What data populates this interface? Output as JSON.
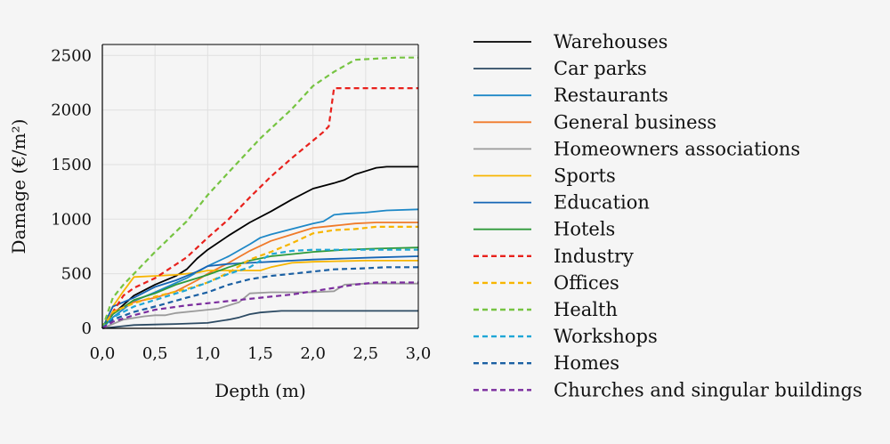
{
  "chart_data": {
    "type": "line",
    "xlabel": "Depth (m)",
    "ylabel": "Damage (€/m²)",
    "xlim": [
      0,
      3
    ],
    "ylim": [
      0,
      2600
    ],
    "x_ticks": [
      "0,0",
      "0,5",
      "1,0",
      "1,5",
      "2,0",
      "2,5",
      "3,0"
    ],
    "y_ticks": [
      "0",
      "500",
      "1000",
      "1500",
      "2000",
      "2500"
    ],
    "grid": true,
    "legend_position": "right",
    "series": [
      {
        "name": "Warehouses",
        "color": "#000000",
        "dash": false,
        "points": [
          [
            0,
            0
          ],
          [
            0.1,
            130
          ],
          [
            0.3,
            300
          ],
          [
            0.5,
            400
          ],
          [
            0.7,
            480
          ],
          [
            0.8,
            540
          ],
          [
            0.9,
            640
          ],
          [
            1.0,
            720
          ],
          [
            1.2,
            850
          ],
          [
            1.4,
            970
          ],
          [
            1.6,
            1070
          ],
          [
            1.8,
            1180
          ],
          [
            2.0,
            1280
          ],
          [
            2.2,
            1330
          ],
          [
            2.3,
            1360
          ],
          [
            2.4,
            1410
          ],
          [
            2.5,
            1440
          ],
          [
            2.6,
            1470
          ],
          [
            2.7,
            1480
          ],
          [
            3.0,
            1480
          ]
        ]
      },
      {
        "name": "Car parks",
        "color": "#2c4a63",
        "dash": false,
        "points": [
          [
            0,
            0
          ],
          [
            0.2,
            20
          ],
          [
            0.3,
            30
          ],
          [
            0.5,
            35
          ],
          [
            0.7,
            40
          ],
          [
            1.0,
            50
          ],
          [
            1.2,
            80
          ],
          [
            1.3,
            100
          ],
          [
            1.4,
            130
          ],
          [
            1.5,
            145
          ],
          [
            1.7,
            160
          ],
          [
            3.0,
            160
          ]
        ]
      },
      {
        "name": "Restaurants",
        "color": "#1e88c7",
        "dash": false,
        "points": [
          [
            0,
            0
          ],
          [
            0.1,
            100
          ],
          [
            0.3,
            250
          ],
          [
            0.5,
            330
          ],
          [
            0.8,
            460
          ],
          [
            1.0,
            570
          ],
          [
            1.2,
            660
          ],
          [
            1.4,
            770
          ],
          [
            1.5,
            830
          ],
          [
            1.6,
            860
          ],
          [
            1.8,
            910
          ],
          [
            2.0,
            960
          ],
          [
            2.1,
            980
          ],
          [
            2.2,
            1040
          ],
          [
            2.3,
            1050
          ],
          [
            2.5,
            1060
          ],
          [
            2.7,
            1080
          ],
          [
            3.0,
            1090
          ]
        ]
      },
      {
        "name": "General business",
        "color": "#f07a2a",
        "dash": false,
        "points": [
          [
            0,
            0
          ],
          [
            0.1,
            150
          ],
          [
            0.3,
            240
          ],
          [
            0.5,
            280
          ],
          [
            0.7,
            340
          ],
          [
            0.9,
            440
          ],
          [
            1.0,
            500
          ],
          [
            1.2,
            600
          ],
          [
            1.4,
            710
          ],
          [
            1.6,
            800
          ],
          [
            1.8,
            860
          ],
          [
            2.0,
            920
          ],
          [
            2.2,
            940
          ],
          [
            2.4,
            960
          ],
          [
            2.6,
            970
          ],
          [
            3.0,
            970
          ]
        ]
      },
      {
        "name": "Homeowners associations",
        "color": "#9b9b9b",
        "dash": false,
        "points": [
          [
            0,
            0
          ],
          [
            0.2,
            80
          ],
          [
            0.4,
            110
          ],
          [
            0.5,
            120
          ],
          [
            0.6,
            120
          ],
          [
            0.7,
            140
          ],
          [
            0.9,
            160
          ],
          [
            1.1,
            180
          ],
          [
            1.3,
            240
          ],
          [
            1.4,
            320
          ],
          [
            1.6,
            330
          ],
          [
            2.0,
            330
          ],
          [
            2.2,
            340
          ],
          [
            2.3,
            400
          ],
          [
            2.5,
            410
          ],
          [
            3.0,
            410
          ]
        ]
      },
      {
        "name": "Sports",
        "color": "#f7b500",
        "dash": false,
        "points": [
          [
            0,
            0
          ],
          [
            0.1,
            200
          ],
          [
            0.2,
            340
          ],
          [
            0.3,
            470
          ],
          [
            0.5,
            480
          ],
          [
            0.7,
            490
          ],
          [
            0.9,
            510
          ],
          [
            1.0,
            530
          ],
          [
            1.2,
            530
          ],
          [
            1.5,
            530
          ],
          [
            1.6,
            560
          ],
          [
            1.8,
            600
          ],
          [
            2.0,
            610
          ],
          [
            2.5,
            620
          ],
          [
            3.0,
            620
          ]
        ]
      },
      {
        "name": "Education",
        "color": "#1565b5",
        "dash": false,
        "points": [
          [
            0,
            0
          ],
          [
            0.1,
            200
          ],
          [
            0.3,
            280
          ],
          [
            0.5,
            380
          ],
          [
            0.7,
            440
          ],
          [
            0.9,
            520
          ],
          [
            1.0,
            570
          ],
          [
            1.2,
            590
          ],
          [
            1.4,
            600
          ],
          [
            1.6,
            610
          ],
          [
            1.8,
            620
          ],
          [
            2.0,
            630
          ],
          [
            2.3,
            640
          ],
          [
            2.6,
            650
          ],
          [
            3.0,
            660
          ]
        ]
      },
      {
        "name": "Hotels",
        "color": "#2e9a3a",
        "dash": false,
        "points": [
          [
            0,
            0
          ],
          [
            0.1,
            130
          ],
          [
            0.3,
            260
          ],
          [
            0.5,
            320
          ],
          [
            0.7,
            400
          ],
          [
            0.9,
            460
          ],
          [
            1.0,
            490
          ],
          [
            1.2,
            560
          ],
          [
            1.4,
            620
          ],
          [
            1.6,
            660
          ],
          [
            1.8,
            680
          ],
          [
            2.0,
            700
          ],
          [
            2.3,
            720
          ],
          [
            2.6,
            730
          ],
          [
            3.0,
            740
          ]
        ]
      },
      {
        "name": "Industry",
        "color": "#e8211c",
        "dash": true,
        "points": [
          [
            0,
            0
          ],
          [
            0.2,
            300
          ],
          [
            0.3,
            370
          ],
          [
            0.5,
            460
          ],
          [
            0.8,
            650
          ],
          [
            1.0,
            830
          ],
          [
            1.2,
            1000
          ],
          [
            1.4,
            1200
          ],
          [
            1.6,
            1390
          ],
          [
            1.8,
            1560
          ],
          [
            2.0,
            1720
          ],
          [
            2.1,
            1800
          ],
          [
            2.15,
            1850
          ],
          [
            2.2,
            2200
          ],
          [
            3.0,
            2200
          ]
        ]
      },
      {
        "name": "Offices",
        "color": "#f7b500",
        "dash": true,
        "points": [
          [
            0,
            0
          ],
          [
            0.1,
            150
          ],
          [
            0.3,
            230
          ],
          [
            0.5,
            290
          ],
          [
            0.8,
            360
          ],
          [
            1.0,
            420
          ],
          [
            1.2,
            510
          ],
          [
            1.4,
            630
          ],
          [
            1.6,
            700
          ],
          [
            1.8,
            780
          ],
          [
            2.0,
            870
          ],
          [
            2.2,
            900
          ],
          [
            2.4,
            910
          ],
          [
            2.6,
            930
          ],
          [
            3.0,
            930
          ]
        ]
      },
      {
        "name": "Health",
        "color": "#76c442",
        "dash": true,
        "points": [
          [
            0,
            0
          ],
          [
            0.1,
            280
          ],
          [
            0.2,
            400
          ],
          [
            0.5,
            700
          ],
          [
            0.8,
            980
          ],
          [
            1.0,
            1220
          ],
          [
            1.2,
            1430
          ],
          [
            1.5,
            1740
          ],
          [
            1.8,
            2010
          ],
          [
            2.0,
            2220
          ],
          [
            2.2,
            2350
          ],
          [
            2.4,
            2460
          ],
          [
            2.6,
            2470
          ],
          [
            2.8,
            2480
          ],
          [
            3.0,
            2480
          ]
        ]
      },
      {
        "name": "Workshops",
        "color": "#1fa6d6",
        "dash": true,
        "points": [
          [
            0,
            0
          ],
          [
            0.1,
            100
          ],
          [
            0.3,
            200
          ],
          [
            0.5,
            260
          ],
          [
            0.8,
            350
          ],
          [
            1.0,
            420
          ],
          [
            1.2,
            500
          ],
          [
            1.4,
            560
          ],
          [
            1.6,
            680
          ],
          [
            1.8,
            710
          ],
          [
            2.0,
            720
          ],
          [
            2.3,
            720
          ],
          [
            2.6,
            720
          ],
          [
            3.0,
            720
          ]
        ]
      },
      {
        "name": "Homes",
        "color": "#1b60a3",
        "dash": true,
        "points": [
          [
            0,
            0
          ],
          [
            0.1,
            80
          ],
          [
            0.3,
            150
          ],
          [
            0.5,
            200
          ],
          [
            0.8,
            280
          ],
          [
            1.0,
            330
          ],
          [
            1.2,
            400
          ],
          [
            1.4,
            450
          ],
          [
            1.6,
            480
          ],
          [
            1.8,
            500
          ],
          [
            2.0,
            520
          ],
          [
            2.2,
            540
          ],
          [
            2.5,
            550
          ],
          [
            2.7,
            560
          ],
          [
            3.0,
            560
          ]
        ]
      },
      {
        "name": "Churches and singular buildings",
        "color": "#7b2d9e",
        "dash": true,
        "points": [
          [
            0,
            0
          ],
          [
            0.1,
            60
          ],
          [
            0.3,
            120
          ],
          [
            0.5,
            170
          ],
          [
            0.8,
            210
          ],
          [
            1.0,
            230
          ],
          [
            1.3,
            260
          ],
          [
            1.6,
            290
          ],
          [
            1.8,
            310
          ],
          [
            2.0,
            340
          ],
          [
            2.2,
            370
          ],
          [
            2.4,
            400
          ],
          [
            2.6,
            420
          ],
          [
            3.0,
            420
          ]
        ]
      }
    ]
  }
}
